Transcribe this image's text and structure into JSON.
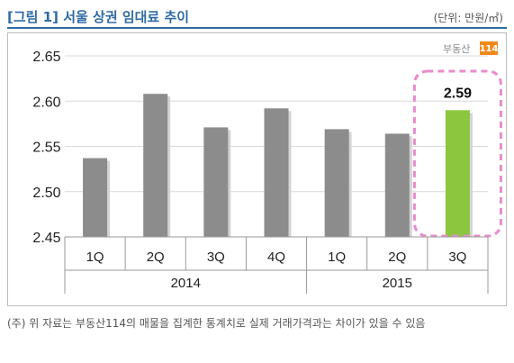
{
  "header": {
    "title": "[그림 1] 서울 상권 임대료 추이",
    "unit": "(단위: 만원/㎡)"
  },
  "logo": {
    "text": "부동산",
    "badge": "114"
  },
  "footnote": "(주) 위 자료는 부동산114의 매물을 집계한 통계치로 실제 거래가격과는 차이가 있을 수 있음",
  "colors": {
    "title": "#2f6aa3",
    "bar": "#8c8c8c",
    "highlight_bar": "#8cc63f",
    "highlight_box": "#e88ccc"
  },
  "chart_data": {
    "type": "bar",
    "categories": [
      "1Q",
      "2Q",
      "3Q",
      "4Q",
      "1Q",
      "2Q",
      "3Q"
    ],
    "groups": [
      {
        "label": "2014",
        "count": 4
      },
      {
        "label": "2015",
        "count": 3
      }
    ],
    "values": [
      2.537,
      2.608,
      2.571,
      2.592,
      2.569,
      2.564,
      2.59
    ],
    "highlight_index": 6,
    "data_labels": [
      "",
      "",
      "",
      "",
      "",
      "",
      "2.59"
    ],
    "ylim": [
      2.45,
      2.65
    ],
    "yticks": [
      "2.45",
      "2.50",
      "2.55",
      "2.60",
      "2.65"
    ],
    "grid": true,
    "legend": "none"
  }
}
